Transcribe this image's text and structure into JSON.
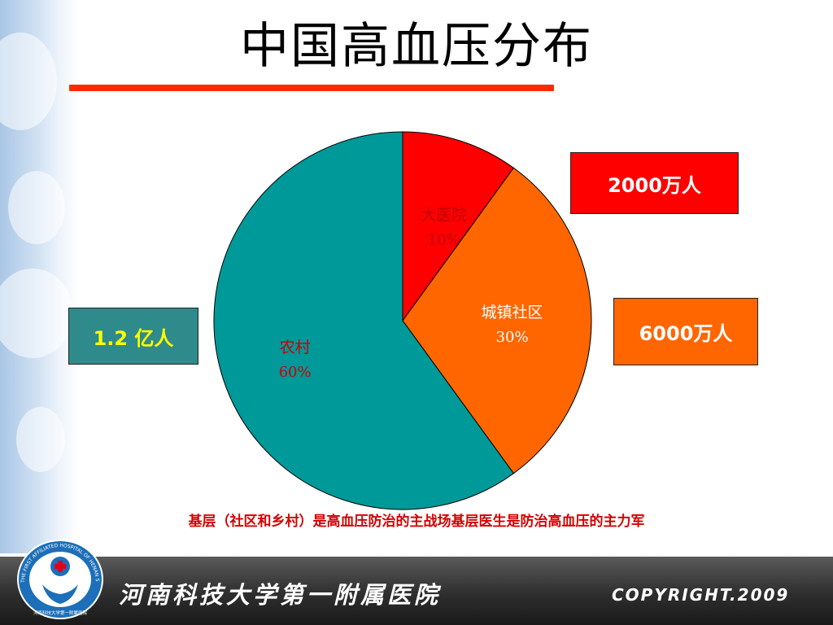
{
  "slide": {
    "title": "中国高血压分布",
    "footnote": "基层（社区和乡村）是高血压防治的主战场基层医生是防治高血压的主力军",
    "footer_hospital": "河南科技大学第一附属医院",
    "footer_copyright": "COPYRIGHT.2009",
    "logo_ring_text": "THE FIRST AFFILIATED HOSPITAL OF HENAN SCIENCE & TECHNOLOGY UNIVERSITY",
    "logo_bottom_text": "河南科技大学第一附属医院"
  },
  "chart_data": {
    "type": "pie",
    "title": "",
    "slices": [
      {
        "label": "大医院",
        "percent_label": "10%",
        "value": 10,
        "color": "#ff0000",
        "label_color": "#c00000"
      },
      {
        "label": "城镇社区",
        "percent_label": "30%",
        "value": 30,
        "color": "#ff6600",
        "label_color": "#ffffff"
      },
      {
        "label": "农村",
        "percent_label": "60%",
        "value": 60,
        "color": "#009999",
        "label_color": "#cc0000"
      }
    ],
    "start_angle_deg": 0,
    "direction": "clockwise",
    "stroke_color": "#000000"
  },
  "callouts": [
    {
      "text": "2000万人",
      "background": "#ff0000",
      "color": "#ffffff",
      "slice": "大医院"
    },
    {
      "text": "6000万人",
      "background": "#ff6600",
      "color": "#ffffff",
      "slice": "城镇社区"
    },
    {
      "text": "1.2 亿人",
      "background": "#2f8b8b",
      "color": "#ffff00",
      "slice": "农村"
    }
  ],
  "colors": {
    "title_rule": "#ff2a00",
    "footnote": "#d40000"
  }
}
